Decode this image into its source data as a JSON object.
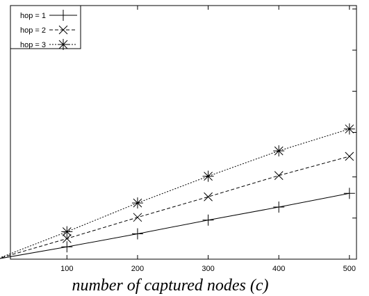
{
  "chart_data": {
    "type": "line",
    "title": "",
    "xlabel": "number of captured nodes (c)",
    "ylabel": "",
    "xlim": [
      20,
      510
    ],
    "ylim": [
      0,
      370
    ],
    "x": [
      0,
      100,
      200,
      300,
      400,
      500
    ],
    "xtick_labels": [
      "100",
      "200",
      "300",
      "400",
      "500"
    ],
    "xticks": [
      100,
      200,
      300,
      400,
      500
    ],
    "yticks": [
      0,
      60,
      120,
      185,
      245,
      305,
      365
    ],
    "grid": false,
    "legend_position": "top-left",
    "series": [
      {
        "name": "hop = 1",
        "marker": "plus",
        "dash": "solid",
        "values": [
          0,
          18,
          37,
          57,
          76,
          96
        ]
      },
      {
        "name": "hop = 2",
        "marker": "x",
        "dash": "dashed",
        "values": [
          0,
          30,
          61,
          91,
          122,
          150
        ]
      },
      {
        "name": "hop = 3",
        "marker": "star",
        "dash": "dotted",
        "values": [
          0,
          40,
          82,
          121,
          158,
          190
        ]
      }
    ]
  }
}
